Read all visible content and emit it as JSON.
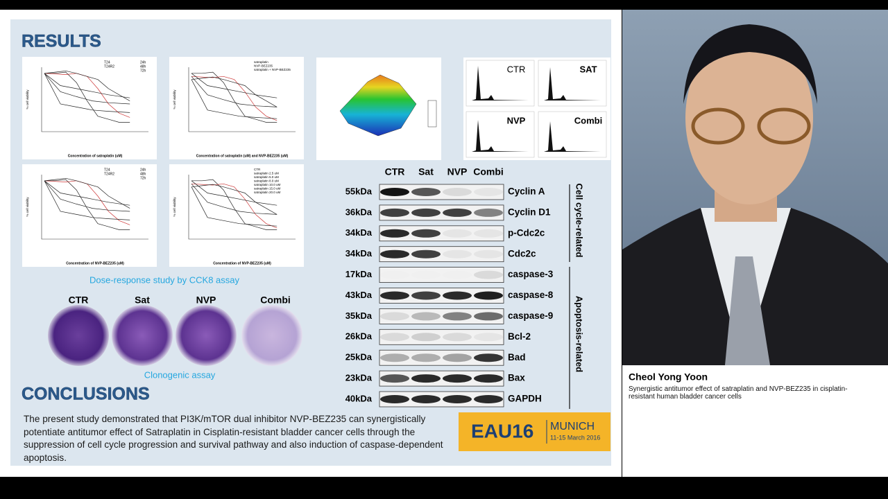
{
  "results": {
    "title": "RESULTS"
  },
  "viability_charts": [
    {
      "legend_cells": [
        "T24",
        "T24R2"
      ],
      "legend_times": [
        "24h",
        "48h",
        "72h"
      ],
      "y_label": "% cell viability",
      "x_label": "Concentration of satraplatin (uM)"
    },
    {
      "legend": [
        "satraplatin",
        "NVP-BEZ235",
        "satraplatin + NVP-BEZ235"
      ],
      "y_label": "% cell viability",
      "x_label": "Concentration of satraplatin (uM) and NVP-BEZ235 (uM)"
    },
    {
      "legend_cells": [
        "T24",
        "T24R2"
      ],
      "legend_times": [
        "24h",
        "48h",
        "72h"
      ],
      "y_label": "% cell viability",
      "x_label": "Concentration of NVP-BEZ235 (uM)"
    },
    {
      "legend": [
        "CTR",
        "satraplatin 2.5 uM",
        "satraplatin 5.0 uM",
        "satraplatin 8.0 uM",
        "satraplatin 10.0 uM",
        "satraplatin 15.0 uM",
        "satraplatin 20.0 uM"
      ],
      "y_label": "% cell viability",
      "x_label": "Concentration of NVP-BEZ235 (uM)"
    }
  ],
  "flow_panels": [
    "CTR",
    "SAT",
    "NVP",
    "Combi"
  ],
  "dose_caption": "Dose-response study by CCK8 assay",
  "clonogenic": {
    "labels": [
      "CTR",
      "Sat",
      "NVP",
      "Combi"
    ],
    "caption": "Clonogenic assay"
  },
  "blot": {
    "lanes": [
      "CTR",
      "Sat",
      "NVP",
      "Combi"
    ],
    "rows": [
      {
        "kda": "55kDa",
        "protein": "Cyclin A"
      },
      {
        "kda": "36kDa",
        "protein": "Cyclin D1"
      },
      {
        "kda": "34kDa",
        "protein": "p-Cdc2c"
      },
      {
        "kda": "34kDa",
        "protein": "Cdc2c"
      },
      {
        "kda": "17kDa",
        "protein": "caspase-3"
      },
      {
        "kda": "43kDa",
        "protein": "caspase-8"
      },
      {
        "kda": "35kDa",
        "protein": "caspase-9"
      },
      {
        "kda": "26kDa",
        "protein": "Bcl-2"
      },
      {
        "kda": "25kDa",
        "protein": "Bad"
      },
      {
        "kda": "23kDa",
        "protein": "Bax"
      },
      {
        "kda": "40kDa",
        "protein": "GAPDH"
      }
    ],
    "groups": [
      "Cell cycle-related",
      "Apoptosis-related"
    ]
  },
  "conclusions": {
    "title": "CONCLUSIONS",
    "text": "The present study demonstrated that PI3K/mTOR dual inhibitor NVP-BEZ235 can synergistically potentiate antitumor effect of Satraplatin in Cisplatin-resistant bladder cancer cells through the suppression of cell cycle progression and survival pathway and also induction of caspase-dependent apoptosis."
  },
  "logo": {
    "brand": "EAU16",
    "city": "MUNICH",
    "dates": "11-15 March 2016"
  },
  "speaker": {
    "name": "Cheol Yong Yoon",
    "talk_title": "Synergistic antitumor effect of satraplatin and NVP-BEZ235 in cisplatin-resistant human bladder cancer cells"
  }
}
